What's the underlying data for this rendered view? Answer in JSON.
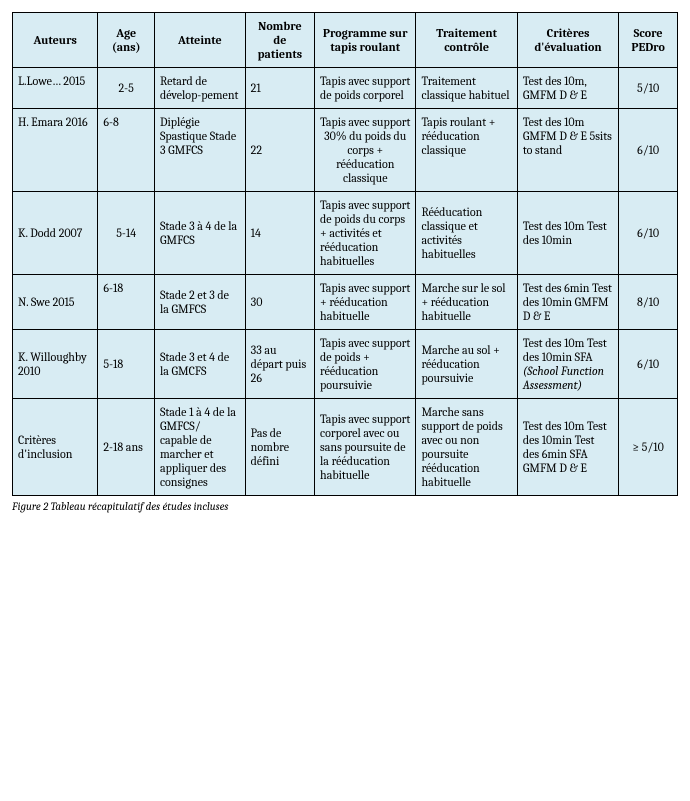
{
  "table": {
    "columns": [
      {
        "key": "auteurs",
        "label": "Auteurs"
      },
      {
        "key": "age",
        "label": "Age (ans)"
      },
      {
        "key": "atteinte",
        "label": "Atteinte"
      },
      {
        "key": "nombre",
        "label": "Nombre de patients"
      },
      {
        "key": "programme",
        "label": "Programme sur tapis roulant"
      },
      {
        "key": "traitement",
        "label": "Traitement contrôle"
      },
      {
        "key": "criteres",
        "label": "Critères d'évaluation"
      },
      {
        "key": "score",
        "label": "Score PEDro"
      }
    ],
    "rows": [
      {
        "auteurs": "L.Lowe… 2015",
        "age": "2-5",
        "atteinte": "Retard de dévelop-pement",
        "nombre": "21",
        "programme": "Tapis avec support de poids corporel",
        "traitement": "Traitement classique habituel",
        "criteres": "Test des 10m, GMFM D & E",
        "score": "5/10"
      },
      {
        "auteurs": "H. Emara 2016",
        "age": "6-8",
        "atteinte": "Diplégie Spastique Stade 3 GMFCS",
        "nombre": "22",
        "programme": "Tapis avec support 30% du poids du corps + rééducation classique",
        "traitement": "Tapis roulant + rééducation classique",
        "criteres": "Test des 10m GMFM D & E 5sits to stand",
        "score": "6/10"
      },
      {
        "auteurs": "K. Dodd 2007",
        "age": "5-14",
        "atteinte": "Stade 3 à 4 de la GMFCS",
        "nombre": "14",
        "programme": "Tapis avec support de poids du corps + activités et rééducation habituelles",
        "traitement": "Rééducation classique et activités habituelles",
        "criteres": "Test des 10m Test des 10min",
        "score": "6/10"
      },
      {
        "auteurs": "N. Swe 2015",
        "age": "6-18",
        "atteinte": "Stade 2 et 3 de la GMFCS",
        "nombre": "30",
        "programme": "Tapis avec support + rééducation habituelle",
        "traitement": "Marche sur le sol + rééducation habituelle",
        "criteres": "Test des 6min Test des 10min GMFM D & E",
        "score": "8/10"
      },
      {
        "auteurs": "K. Willoughby 2010",
        "age": "5-18",
        "atteinte": "Stade 3 et 4 de la GMCFS",
        "nombre": "33 au départ puis 26",
        "programme": "Tapis avec support de poids + rééducation poursuivie",
        "traitement": "Marche au sol + rééducation poursuivie",
        "criteres_main": "Test des 10m Test des 10min SFA ",
        "criteres_ital": "(School Function Assessment)",
        "score": "6/10"
      },
      {
        "auteurs": "Critères d'inclusion",
        "age": "2-18 ans",
        "atteinte": "Stade 1 à 4 de la GMFCS/ capable de marcher et appliquer des consignes",
        "nombre": "Pas de nombre défini",
        "programme": "Tapis avec support corporel avec ou sans poursuite de la rééducation habituelle",
        "traitement": "Marche sans support de poids avec ou non poursuite rééducation habituelle",
        "criteres": "Test des 10m Test des 10min Test des 6min SFA GMFM D & E",
        "score": "≥ 5/10"
      }
    ],
    "caption_prefix": "Figure 2 ",
    "caption_rest": "Tableau récapitulatif des études incluses"
  }
}
